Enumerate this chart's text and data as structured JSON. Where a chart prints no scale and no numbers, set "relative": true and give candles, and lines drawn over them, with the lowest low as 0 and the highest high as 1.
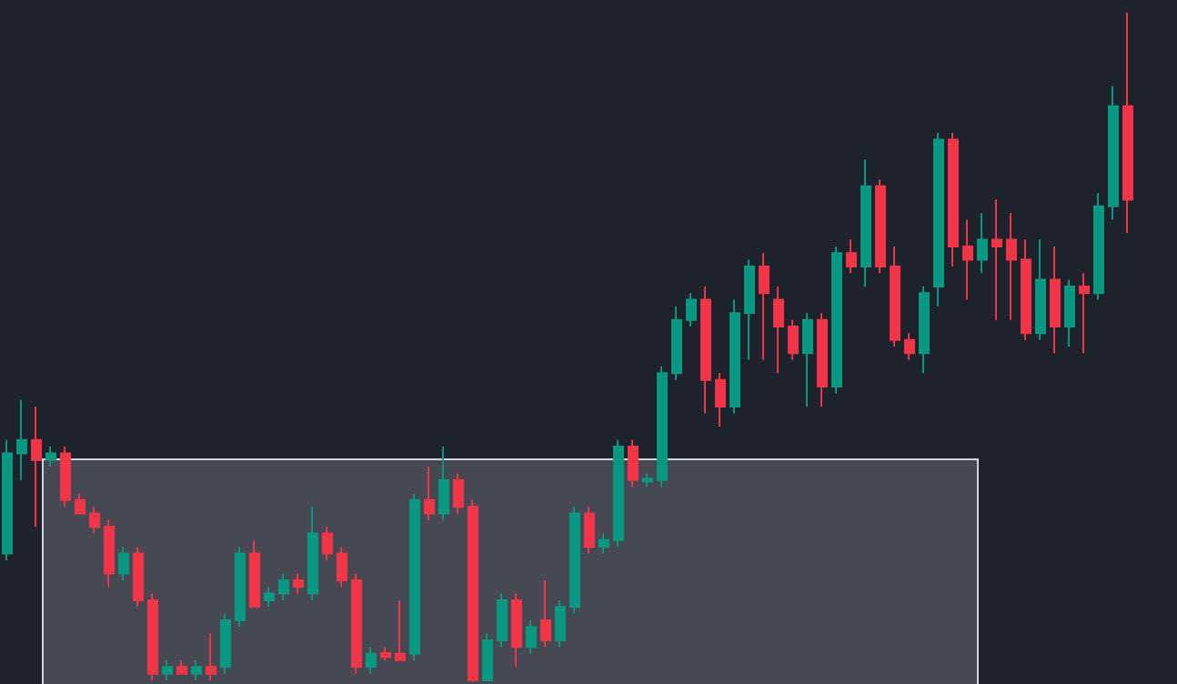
{
  "chart_data": {
    "type": "candlestick",
    "relative": true,
    "categories": [
      null,
      null,
      null,
      null,
      null,
      null,
      null,
      null,
      null,
      null,
      null,
      null,
      null,
      null,
      null,
      null,
      null,
      null,
      null,
      null,
      null,
      null,
      null,
      null,
      null,
      null,
      null,
      null,
      null,
      null,
      null,
      null,
      null,
      null,
      null,
      null,
      null,
      null,
      null,
      null,
      null,
      null,
      null,
      null,
      null,
      null,
      null,
      null,
      null,
      null,
      null,
      null,
      null,
      null,
      null,
      null,
      null,
      null,
      null,
      null,
      null,
      null,
      null,
      null,
      null,
      null,
      null,
      null,
      null,
      null,
      null,
      null,
      null,
      null,
      null,
      null,
      null,
      null
    ],
    "ohlc": [
      [
        0.19,
        0.36,
        0.18,
        0.34
      ],
      [
        0.34,
        0.42,
        0.3,
        0.36
      ],
      [
        0.36,
        0.41,
        0.23,
        0.33
      ],
      [
        0.33,
        0.35,
        0.32,
        0.34
      ],
      [
        0.34,
        0.35,
        0.26,
        0.27
      ],
      [
        0.27,
        0.28,
        0.25,
        0.25
      ],
      [
        0.25,
        0.26,
        0.22,
        0.23
      ],
      [
        0.23,
        0.24,
        0.14,
        0.16
      ],
      [
        0.16,
        0.2,
        0.15,
        0.19
      ],
      [
        0.19,
        0.2,
        0.11,
        0.12
      ],
      [
        0.12,
        0.13,
        0.0,
        0.01
      ],
      [
        0.01,
        0.03,
        0.0,
        0.02
      ],
      [
        0.02,
        0.03,
        0.01,
        0.01
      ],
      [
        0.01,
        0.03,
        0.0,
        0.02
      ],
      [
        0.02,
        0.07,
        0.0,
        0.01
      ],
      [
        0.02,
        0.1,
        0.01,
        0.09
      ],
      [
        0.09,
        0.2,
        0.08,
        0.19
      ],
      [
        0.19,
        0.21,
        0.11,
        0.11
      ],
      [
        0.12,
        0.14,
        0.11,
        0.13
      ],
      [
        0.13,
        0.16,
        0.12,
        0.15
      ],
      [
        0.15,
        0.16,
        0.13,
        0.14
      ],
      [
        0.13,
        0.26,
        0.12,
        0.22
      ],
      [
        0.22,
        0.23,
        0.18,
        0.19
      ],
      [
        0.19,
        0.2,
        0.14,
        0.15
      ],
      [
        0.15,
        0.16,
        0.01,
        0.02
      ],
      [
        0.02,
        0.05,
        0.01,
        0.04
      ],
      [
        0.041,
        0.05,
        0.03,
        0.035
      ],
      [
        0.04,
        0.12,
        0.03,
        0.03
      ],
      [
        0.04,
        0.28,
        0.03,
        0.27
      ],
      [
        0.27,
        0.32,
        0.24,
        0.25
      ],
      [
        0.25,
        0.35,
        0.24,
        0.3
      ],
      [
        0.3,
        0.31,
        0.25,
        0.26
      ],
      [
        0.26,
        0.27,
        0.0,
        0.0
      ],
      [
        0.0,
        0.07,
        0.0,
        0.06
      ],
      [
        0.06,
        0.13,
        0.05,
        0.12
      ],
      [
        0.12,
        0.13,
        0.02,
        0.05
      ],
      [
        0.05,
        0.09,
        0.04,
        0.08
      ],
      [
        0.09,
        0.15,
        0.05,
        0.06
      ],
      [
        0.06,
        0.12,
        0.05,
        0.11
      ],
      [
        0.11,
        0.26,
        0.1,
        0.25
      ],
      [
        0.25,
        0.26,
        0.19,
        0.2
      ],
      [
        0.2,
        0.22,
        0.19,
        0.21
      ],
      [
        0.21,
        0.36,
        0.2,
        0.35
      ],
      [
        0.35,
        0.36,
        0.29,
        0.3
      ],
      [
        0.298,
        0.31,
        0.29,
        0.302
      ],
      [
        0.3,
        0.47,
        0.29,
        0.46
      ],
      [
        0.46,
        0.56,
        0.45,
        0.54
      ],
      [
        0.54,
        0.58,
        0.53,
        0.57
      ],
      [
        0.57,
        0.59,
        0.4,
        0.45
      ],
      [
        0.45,
        0.46,
        0.38,
        0.41
      ],
      [
        0.41,
        0.57,
        0.4,
        0.55
      ],
      [
        0.55,
        0.63,
        0.48,
        0.62
      ],
      [
        0.62,
        0.64,
        0.48,
        0.58
      ],
      [
        0.57,
        0.59,
        0.46,
        0.53
      ],
      [
        0.53,
        0.54,
        0.48,
        0.49
      ],
      [
        0.49,
        0.55,
        0.41,
        0.54
      ],
      [
        0.54,
        0.55,
        0.41,
        0.44
      ],
      [
        0.44,
        0.65,
        0.43,
        0.64
      ],
      [
        0.64,
        0.66,
        0.61,
        0.62
      ],
      [
        0.62,
        0.78,
        0.59,
        0.74
      ],
      [
        0.74,
        0.75,
        0.61,
        0.62
      ],
      [
        0.62,
        0.65,
        0.5,
        0.51
      ],
      [
        0.51,
        0.52,
        0.48,
        0.49
      ],
      [
        0.49,
        0.59,
        0.46,
        0.58
      ],
      [
        0.59,
        0.82,
        0.56,
        0.81
      ],
      [
        0.81,
        0.82,
        0.62,
        0.65
      ],
      [
        0.65,
        0.69,
        0.57,
        0.63
      ],
      [
        0.63,
        0.7,
        0.61,
        0.66
      ],
      [
        0.66,
        0.72,
        0.54,
        0.65
      ],
      [
        0.66,
        0.7,
        0.54,
        0.63
      ],
      [
        0.63,
        0.66,
        0.51,
        0.52
      ],
      [
        0.52,
        0.66,
        0.51,
        0.6
      ],
      [
        0.6,
        0.65,
        0.49,
        0.53
      ],
      [
        0.53,
        0.6,
        0.5,
        0.59
      ],
      [
        0.59,
        0.61,
        0.49,
        0.58
      ],
      [
        0.58,
        0.73,
        0.57,
        0.71
      ],
      [
        0.71,
        0.89,
        0.69,
        0.86
      ],
      [
        0.86,
        1.0,
        0.67,
        0.72
      ]
    ],
    "colors": [
      "#089981",
      "#089981",
      "#f23645",
      "#089981",
      "#f23645",
      "#f23645",
      "#f23645",
      "#f23645",
      "#089981",
      "#f23645",
      "#f23645",
      "#089981",
      "#f23645",
      "#089981",
      "#f23645",
      "#089981",
      "#089981",
      "#f23645",
      "#089981",
      "#089981",
      "#f23645",
      "#089981",
      "#f23645",
      "#f23645",
      "#f23645",
      "#089981",
      "#f23645",
      "#f23645",
      "#089981",
      "#f23645",
      "#089981",
      "#f23645",
      "#f23645",
      "#089981",
      "#089981",
      "#f23645",
      "#089981",
      "#f23645",
      "#089981",
      "#089981",
      "#f23645",
      "#089981",
      "#089981",
      "#f23645",
      "#089981",
      "#089981",
      "#089981",
      "#089981",
      "#f23645",
      "#f23645",
      "#089981",
      "#089981",
      "#f23645",
      "#f23645",
      "#f23645",
      "#089981",
      "#f23645",
      "#089981",
      "#f23645",
      "#089981",
      "#f23645",
      "#f23645",
      "#f23645",
      "#089981",
      "#089981",
      "#f23645",
      "#f23645",
      "#089981",
      "#f23645",
      "#f23645",
      "#f23645",
      "#089981",
      "#f23645",
      "#089981",
      "#f23645",
      "#089981",
      "#089981",
      "#f23645"
    ]
  }
}
